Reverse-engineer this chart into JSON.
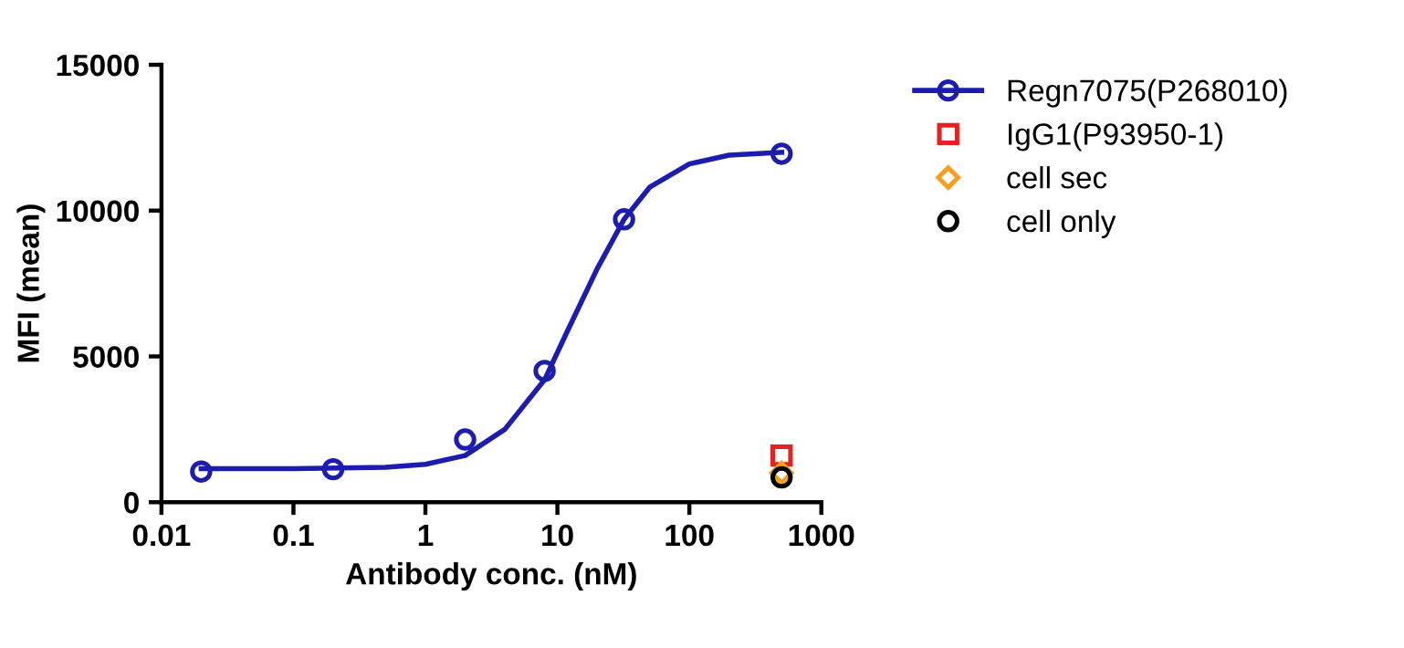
{
  "chart_data": {
    "type": "scatter",
    "xlabel": "Antibody conc. (nM)",
    "ylabel": "MFI (mean)",
    "log": "x",
    "xlim": [
      0.01,
      1000
    ],
    "xticks": [
      {
        "value": 0.01,
        "label": "0.01"
      },
      {
        "value": 0.1,
        "label": "0.1"
      },
      {
        "value": 1,
        "label": "1"
      },
      {
        "value": 10,
        "label": "10"
      },
      {
        "value": 100,
        "label": "100"
      },
      {
        "value": 1000,
        "label": "1000"
      }
    ],
    "ylim": [
      0,
      15000
    ],
    "yticks": [
      0,
      5000,
      10000,
      15000
    ],
    "grid": false,
    "legend": "right",
    "series": [
      {
        "type": "line",
        "color": "#1c1cb0",
        "marker": "none",
        "line_style": "solid",
        "x": [
          0.02,
          0.1,
          0.5,
          1,
          2,
          4,
          8,
          12,
          20,
          32,
          50,
          100,
          200,
          500
        ],
        "values": [
          1150,
          1150,
          1200,
          1300,
          1600,
          2500,
          4200,
          5900,
          8000,
          9700,
          10800,
          11600,
          11900,
          12000
        ]
      },
      {
        "name": "Regn7075(P268010)",
        "color": "#1c1cb0",
        "marker": "circle",
        "x": [
          0.02,
          0.2,
          2,
          8,
          32,
          500
        ],
        "values": [
          1050,
          1130,
          2150,
          4500,
          9700,
          11950
        ]
      },
      {
        "name": "IgG1(P93950-1)",
        "color": "#e82020",
        "marker": "square",
        "x": [
          500
        ],
        "values": [
          1600
        ]
      },
      {
        "name": "cell sec",
        "color": "#f5a020",
        "marker": "diamond",
        "x": [
          500
        ],
        "values": [
          1000
        ]
      },
      {
        "name": "cell only",
        "color": "#000000",
        "marker": "circle",
        "x": [
          500
        ],
        "values": [
          850
        ]
      }
    ]
  }
}
